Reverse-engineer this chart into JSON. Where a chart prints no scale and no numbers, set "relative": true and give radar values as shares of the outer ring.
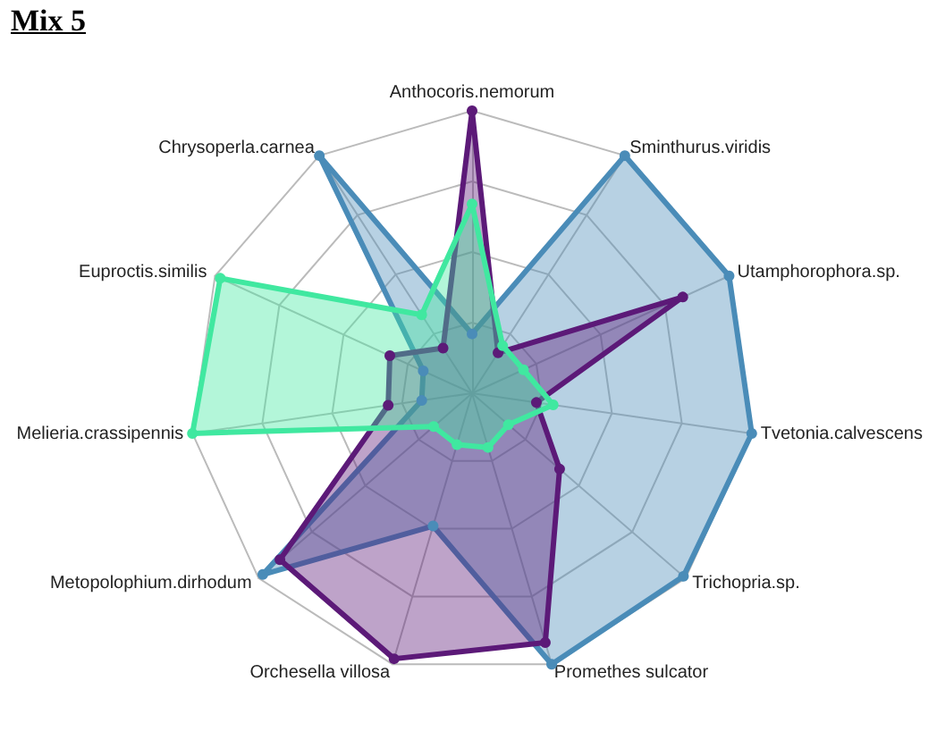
{
  "chart_data": {
    "type": "radar",
    "title": "Mix 5",
    "relative": true,
    "categories": [
      "Anthocoris.nemorum",
      "Sminthurus.viridis",
      "Utamphorophora.sp.",
      "Tvetonia.calvescens",
      "Trichopria.sp.",
      "Promethes sulcator",
      "Orchesella villosa",
      "Metopolophium.dirhodum",
      "Melieria.crassipennis",
      "Euproctis.similis",
      "Chrysoperla.carnea"
    ],
    "series": [
      {
        "color": "#4a8cb8",
        "values": [
          0.21,
          1.0,
          1.0,
          1.0,
          0.99,
          1.0,
          0.49,
          0.98,
          0.18,
          0.19,
          1.0
        ]
      },
      {
        "color": "#5c1a78",
        "values": [
          1.0,
          0.17,
          0.82,
          0.23,
          0.41,
          0.92,
          0.98,
          0.9,
          0.3,
          0.32,
          0.19
        ]
      },
      {
        "color": "#40e8a0",
        "values": [
          0.67,
          0.2,
          0.2,
          0.29,
          0.17,
          0.2,
          0.19,
          0.18,
          1.0,
          0.98,
          0.33
        ]
      }
    ]
  }
}
